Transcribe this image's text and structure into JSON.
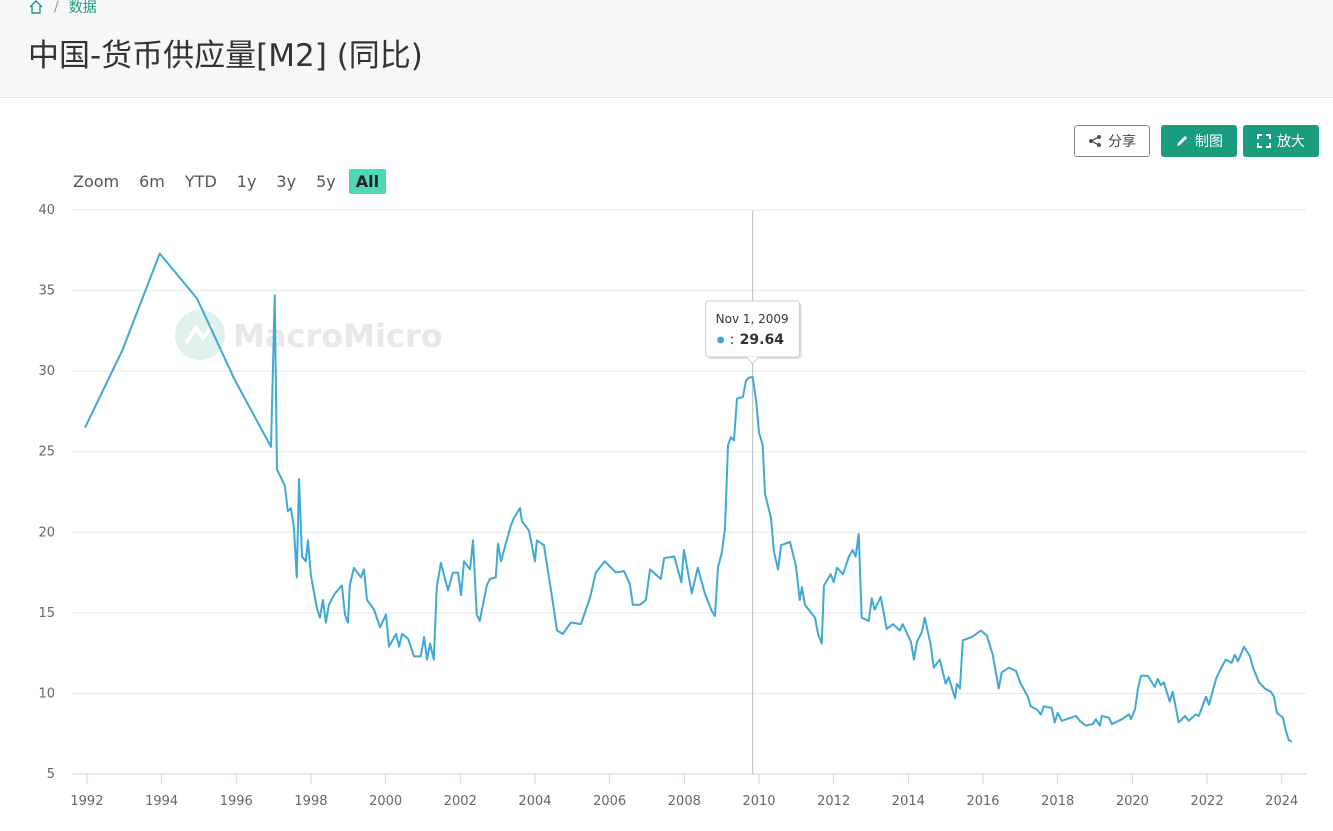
{
  "breadcrumb": {
    "items": [
      "数据"
    ],
    "separator": "/"
  },
  "header": {
    "title": "中国-货币供应量[M2] (同比)"
  },
  "toolbar": {
    "buttons": [
      "分享",
      "制图",
      "放大"
    ]
  },
  "range_selector": {
    "label": "Zoom",
    "buttons": [
      "6m",
      "YTD",
      "1y",
      "3y",
      "5y",
      "All"
    ],
    "selected": 5
  },
  "chart_data": {
    "type": "line",
    "watermark": "MacroMicro",
    "xlim": [
      1991.6,
      2024.65
    ],
    "xticks": [
      1992,
      1994,
      1996,
      1998,
      2000,
      2002,
      2004,
      2006,
      2008,
      2010,
      2012,
      2014,
      2016,
      2018,
      2020,
      2022,
      2024
    ],
    "ylim": [
      5,
      40
    ],
    "yticks": [
      5,
      10,
      15,
      20,
      25,
      30,
      35,
      40
    ],
    "grid": true,
    "tooltip": {
      "label": "Nov 1, 2009",
      "separator": ":",
      "hover_index": 106
    },
    "x": [
      1991.95,
      1992.95,
      1993.95,
      1994.95,
      1995.95,
      1996.93,
      1997.03,
      1997.09,
      1997.3,
      1997.38,
      1997.46,
      1997.54,
      1997.62,
      1997.68,
      1997.76,
      1997.86,
      1997.92,
      1998.0,
      1998.16,
      1998.24,
      1998.32,
      1998.4,
      1998.48,
      1998.64,
      1998.83,
      1998.91,
      1998.99,
      1999.04,
      1999.15,
      1999.34,
      1999.42,
      1999.5,
      1999.69,
      1999.85,
      2000.01,
      2000.09,
      2000.28,
      2000.36,
      2000.44,
      2000.6,
      2000.76,
      2000.94,
      2001.03,
      2001.11,
      2001.19,
      2001.29,
      2001.37,
      2001.48,
      2001.67,
      2001.8,
      2001.94,
      2002.02,
      2002.1,
      2002.26,
      2002.34,
      2002.44,
      2002.52,
      2002.71,
      2002.79,
      2002.95,
      2003.01,
      2003.09,
      2003.35,
      2003.44,
      2003.6,
      2003.65,
      2003.84,
      2004.0,
      2004.05,
      2004.24,
      2004.32,
      2004.43,
      2004.59,
      2004.75,
      2004.96,
      2005.23,
      2005.47,
      2005.63,
      2005.87,
      2006.17,
      2006.38,
      2006.54,
      2006.62,
      2006.81,
      2006.97,
      2007.08,
      2007.37,
      2007.46,
      2007.73,
      2007.92,
      2007.99,
      2008.2,
      2008.36,
      2008.55,
      2008.74,
      2008.82,
      2008.9,
      2009.01,
      2009.09,
      2009.17,
      2009.25,
      2009.33,
      2009.41,
      2009.57,
      2009.65,
      2009.73,
      2009.83,
      2009.92,
      2010.0,
      2010.1,
      2010.16,
      2010.32,
      2010.4,
      2010.51,
      2010.59,
      2010.83,
      2010.99,
      2011.09,
      2011.15,
      2011.23,
      2011.5,
      2011.58,
      2011.68,
      2011.74,
      2011.92,
      2012.0,
      2012.09,
      2012.25,
      2012.41,
      2012.51,
      2012.59,
      2012.67,
      2012.75,
      2012.94,
      2013.02,
      2013.1,
      2013.26,
      2013.42,
      2013.59,
      2013.77,
      2013.85,
      2014.07,
      2014.15,
      2014.23,
      2014.36,
      2014.44,
      2014.6,
      2014.68,
      2014.84,
      2015.0,
      2015.08,
      2015.25,
      2015.3,
      2015.38,
      2015.46,
      2015.7,
      2015.94,
      2016.1,
      2016.26,
      2016.42,
      2016.5,
      2016.69,
      2016.88,
      2017.01,
      2017.2,
      2017.28,
      2017.44,
      2017.55,
      2017.63,
      2017.84,
      2017.92,
      2018.0,
      2018.11,
      2018.49,
      2018.59,
      2018.75,
      2018.94,
      2019.02,
      2019.13,
      2019.18,
      2019.37,
      2019.45,
      2019.72,
      2019.91,
      2019.96,
      2020.07,
      2020.15,
      2020.23,
      2020.41,
      2020.6,
      2020.68,
      2020.76,
      2020.84,
      2021.0,
      2021.08,
      2021.24,
      2021.41,
      2021.51,
      2021.7,
      2021.78,
      2021.97,
      2022.05,
      2022.24,
      2022.34,
      2022.5,
      2022.66,
      2022.74,
      2022.83,
      2022.99,
      2023.15,
      2023.23,
      2023.39,
      2023.55,
      2023.71,
      2023.79,
      2023.87,
      2024.03,
      2024.11,
      2024.19,
      2024.27
    ],
    "series": [
      {
        "color": "#3fa9d5",
        "values": [
          26.5,
          31.3,
          37.3,
          34.5,
          29.5,
          25.3,
          34.7,
          23.9,
          22.9,
          21.3,
          21.5,
          20.4,
          17.2,
          23.3,
          18.5,
          18.2,
          19.5,
          17.3,
          15.3,
          14.7,
          15.8,
          14.4,
          15.5,
          16.2,
          16.7,
          14.9,
          14.4,
          16.7,
          17.8,
          17.2,
          17.7,
          15.8,
          15.2,
          14.1,
          14.9,
          12.9,
          13.7,
          12.9,
          13.7,
          13.4,
          12.3,
          12.3,
          13.5,
          12.1,
          13.1,
          12.1,
          16.6,
          18.1,
          16.4,
          17.5,
          17.5,
          16.1,
          18.2,
          17.7,
          19.5,
          14.9,
          14.5,
          16.7,
          17.1,
          17.2,
          19.3,
          18.2,
          20.4,
          20.9,
          21.5,
          20.7,
          20.1,
          18.2,
          19.5,
          19.2,
          18.0,
          16.4,
          13.9,
          13.7,
          14.4,
          14.3,
          15.9,
          17.5,
          18.2,
          17.5,
          17.6,
          16.8,
          15.5,
          15.5,
          15.8,
          17.7,
          17.1,
          18.4,
          18.5,
          16.9,
          18.9,
          16.2,
          17.8,
          16.2,
          15.1,
          14.8,
          17.8,
          18.8,
          20.3,
          25.4,
          25.9,
          25.7,
          28.3,
          28.4,
          29.4,
          29.6,
          29.64,
          28.2,
          26.2,
          25.4,
          22.4,
          20.9,
          18.8,
          17.7,
          19.2,
          19.4,
          17.9,
          15.8,
          16.6,
          15.5,
          14.7,
          13.7,
          13.1,
          16.7,
          17.4,
          16.9,
          17.8,
          17.4,
          18.5,
          18.9,
          18.5,
          19.9,
          14.7,
          14.5,
          15.9,
          15.2,
          16.0,
          14.0,
          14.3,
          13.9,
          14.3,
          13.2,
          12.1,
          13.2,
          13.8,
          14.7,
          13.0,
          11.6,
          12.1,
          10.6,
          11.0,
          9.7,
          10.6,
          10.3,
          13.3,
          13.5,
          13.9,
          13.6,
          12.4,
          10.3,
          11.3,
          11.6,
          11.4,
          10.6,
          9.8,
          9.2,
          9.0,
          8.7,
          9.2,
          9.1,
          8.2,
          8.8,
          8.3,
          8.6,
          8.3,
          8.0,
          8.1,
          8.4,
          8.0,
          8.6,
          8.5,
          8.1,
          8.4,
          8.7,
          8.4,
          9.0,
          10.3,
          11.1,
          11.1,
          10.4,
          10.9,
          10.5,
          10.7,
          9.5,
          10.1,
          8.2,
          8.6,
          8.3,
          8.7,
          8.6,
          9.8,
          9.3,
          10.9,
          11.4,
          12.1,
          11.9,
          12.4,
          12.0,
          12.9,
          12.3,
          11.6,
          10.7,
          10.3,
          10.1,
          9.8,
          8.8,
          8.5,
          7.7,
          7.1,
          7.0
        ]
      }
    ]
  }
}
